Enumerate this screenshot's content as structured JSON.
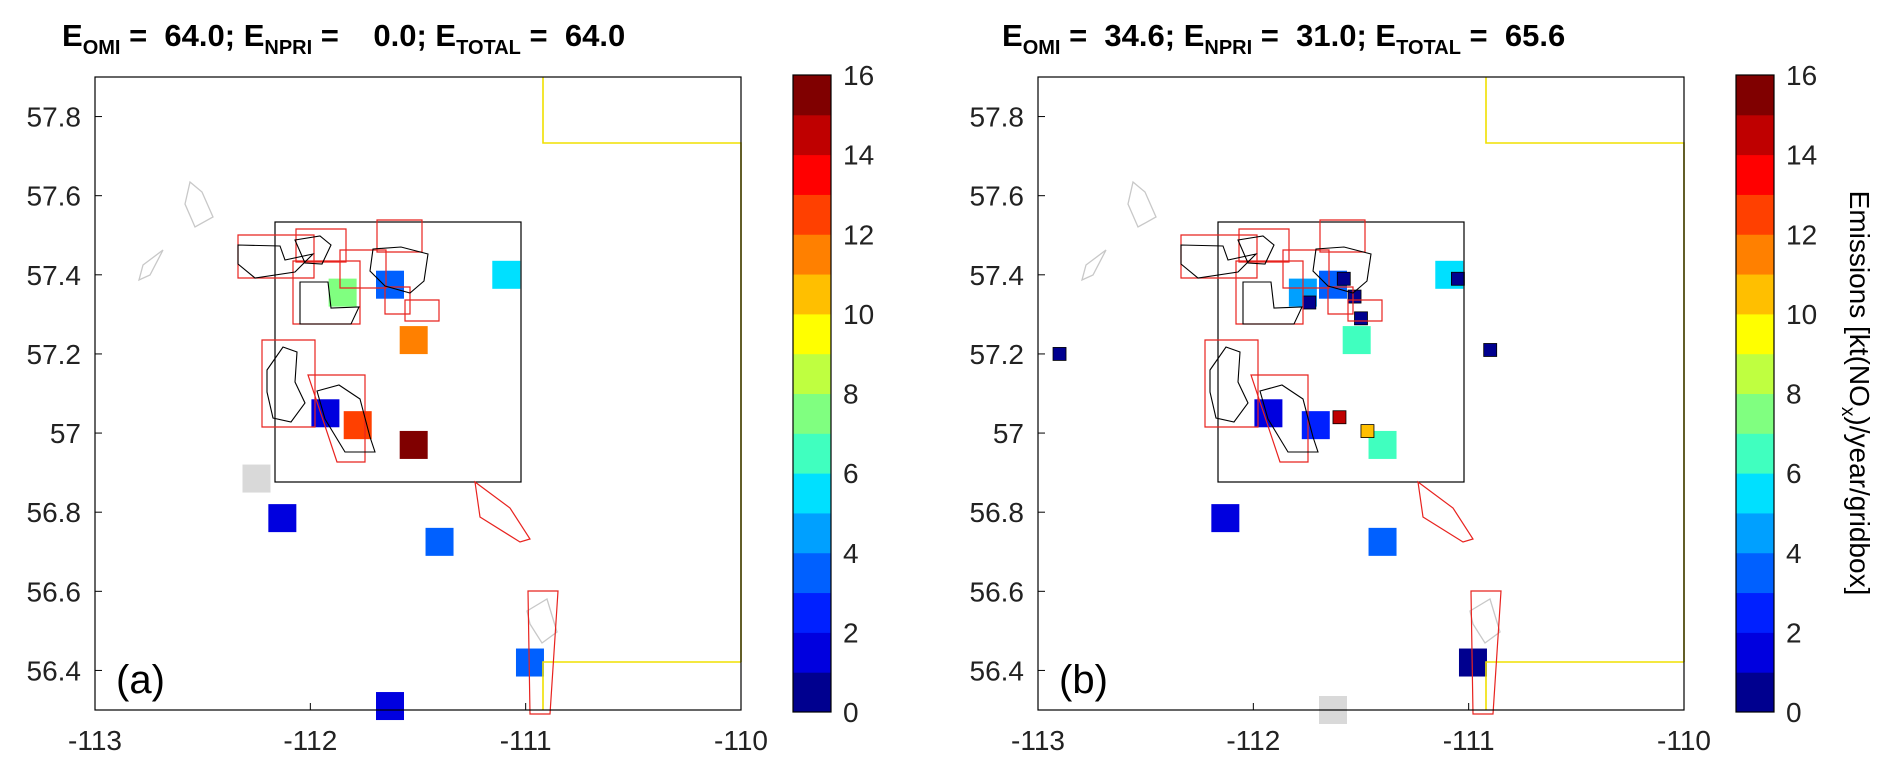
{
  "chart_data": [
    {
      "type": "heatmap",
      "panel_label": "(a)",
      "title": {
        "omi_label": "E",
        "omi_sub": "OMI",
        "omi_value": "64.0",
        "npri_label": "E",
        "npri_sub": "NPRI",
        "npri_value": "0.0",
        "total_label": "E",
        "total_sub": "TOTAL",
        "total_value": "64.0"
      },
      "xlim": [
        -113,
        -110
      ],
      "ylim": [
        56.3,
        57.9
      ],
      "x_ticks": [
        "-113",
        "-112",
        "-111",
        "-110"
      ],
      "y_ticks": [
        "56.4",
        "56.6",
        "56.8",
        "57",
        "57.2",
        "57.4",
        "57.6",
        "57.8"
      ],
      "cells": [
        {
          "lon": -111.85,
          "lat": 57.355,
          "value": 7.6
        },
        {
          "lon": -111.63,
          "lat": 57.375,
          "value": 3.4
        },
        {
          "lon": -111.09,
          "lat": 57.4,
          "value": 5.5
        },
        {
          "lon": -111.52,
          "lat": 57.235,
          "value": 11.2
        },
        {
          "lon": -111.93,
          "lat": 57.05,
          "value": 1.8
        },
        {
          "lon": -111.78,
          "lat": 57.02,
          "value": 12.8
        },
        {
          "lon": -111.52,
          "lat": 56.97,
          "value": 16.0
        },
        {
          "lon": -112.25,
          "lat": 56.885,
          "value": -1
        },
        {
          "lon": -112.13,
          "lat": 56.785,
          "value": 1.8
        },
        {
          "lon": -111.4,
          "lat": 56.725,
          "value": 3.4
        },
        {
          "lon": -110.98,
          "lat": 56.42,
          "value": 3.0
        },
        {
          "lon": -111.63,
          "lat": 56.31,
          "value": 1.5
        }
      ]
    },
    {
      "type": "heatmap",
      "panel_label": "(b)",
      "title": {
        "omi_label": "E",
        "omi_sub": "OMI",
        "omi_value": "34.6",
        "npri_label": "E",
        "npri_sub": "NPRI",
        "npri_value": "31.0",
        "total_label": "E",
        "total_sub": "TOTAL",
        "total_value": "65.6"
      },
      "xlim": [
        -113,
        -110
      ],
      "ylim": [
        56.3,
        57.9
      ],
      "x_ticks": [
        "-113",
        "-112",
        "-111",
        "-110"
      ],
      "y_ticks": [
        "56.4",
        "56.6",
        "56.8",
        "57",
        "57.2",
        "57.4",
        "57.6",
        "57.8"
      ],
      "cells": [
        {
          "lon": -111.77,
          "lat": 57.355,
          "value": 4.8
        },
        {
          "lon": -111.63,
          "lat": 57.375,
          "value": 3.5
        },
        {
          "lon": -111.09,
          "lat": 57.4,
          "value": 5.5
        },
        {
          "lon": -111.52,
          "lat": 57.235,
          "value": 6.8
        },
        {
          "lon": -111.93,
          "lat": 57.05,
          "value": 1.8
        },
        {
          "lon": -111.71,
          "lat": 57.02,
          "value": 2.2
        },
        {
          "lon": -111.4,
          "lat": 56.97,
          "value": 6.4
        },
        {
          "lon": -112.13,
          "lat": 56.785,
          "value": 1.8
        },
        {
          "lon": -111.4,
          "lat": 56.725,
          "value": 3.4
        },
        {
          "lon": -110.98,
          "lat": 56.42,
          "value": 0.6
        },
        {
          "lon": -111.63,
          "lat": 56.3,
          "value": -1
        },
        {
          "lon": -112.9,
          "lat": 57.2,
          "value": 0.3,
          "small": true
        },
        {
          "lon": -111.74,
          "lat": 57.33,
          "value": 0.4,
          "small": true
        },
        {
          "lon": -111.58,
          "lat": 57.39,
          "value": 0.5,
          "small": true
        },
        {
          "lon": -111.53,
          "lat": 57.345,
          "value": 0.6,
          "small": true
        },
        {
          "lon": -111.5,
          "lat": 57.29,
          "value": 0.8,
          "small": true
        },
        {
          "lon": -111.05,
          "lat": 57.39,
          "value": 0.4,
          "small": true
        },
        {
          "lon": -110.9,
          "lat": 57.21,
          "value": 0.3,
          "small": true
        },
        {
          "lon": -111.6,
          "lat": 57.04,
          "value": 14.0,
          "small": true
        },
        {
          "lon": -111.47,
          "lat": 57.005,
          "value": 10.2,
          "small": true
        }
      ]
    }
  ],
  "colorbar": {
    "range": [
      0,
      16
    ],
    "ticks": [
      "0",
      "2",
      "4",
      "6",
      "8",
      "10",
      "12",
      "14",
      "16"
    ],
    "label_main": "Emissions [kt(NO",
    "label_sub": "x",
    "label_end": ")/year/gridbox]",
    "colors": [
      "#00008f",
      "#0000df",
      "#0020ff",
      "#0060ff",
      "#00a0ff",
      "#00e0ff",
      "#40ffbf",
      "#80ff80",
      "#bfff40",
      "#ffff00",
      "#ffbf00",
      "#ff8000",
      "#ff4000",
      "#ff0000",
      "#bf0000",
      "#800000"
    ]
  }
}
